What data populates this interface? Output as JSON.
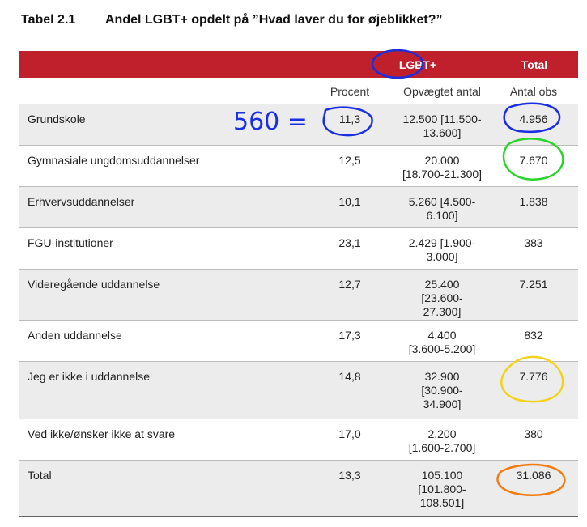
{
  "title": {
    "number": "Tabel 2.1",
    "text": "Andel LGBT+ opdelt på ”Hvad laver du for øjeblikket?”"
  },
  "header": {
    "lgbt": "LGBT+",
    "total": "Total"
  },
  "subheader": {
    "pct": "Procent",
    "weighted": "Opvægtet antal",
    "obs": "Antal obs"
  },
  "rows": [
    {
      "label": "Grundskole",
      "pct": "11,3",
      "weighted": [
        "12.500 [11.500-",
        "13.600]"
      ],
      "obs": "4.956"
    },
    {
      "label": "Gymnasiale ungdomsuddannelser",
      "pct": "12,5",
      "weighted": [
        "20.000",
        "[18.700-21.300]"
      ],
      "obs": "7.670"
    },
    {
      "label": "Erhvervsuddannelser",
      "pct": "10,1",
      "weighted": [
        "5.260 [4.500-",
        "6.100]"
      ],
      "obs": "1.838"
    },
    {
      "label": "FGU-institutioner",
      "pct": "23,1",
      "weighted": [
        "2.429 [1.900-",
        "3.000]"
      ],
      "obs": "383"
    },
    {
      "label": "Videregående uddannelse",
      "pct": "12,7",
      "weighted": [
        "25.400",
        "[23.600-",
        "27.300]"
      ],
      "obs": "7.251"
    },
    {
      "label": "Anden uddannelse",
      "pct": "17,3",
      "weighted": [
        "4.400",
        "[3.600-5.200]"
      ],
      "obs": "832"
    },
    {
      "label": "Jeg er ikke i uddannelse",
      "pct": "14,8",
      "weighted": [
        "32.900",
        "[30.900-",
        "34.900]"
      ],
      "obs": "7.776"
    },
    {
      "label": "Ved ikke/ønsker ikke at svare",
      "pct": "17,0",
      "weighted": [
        "2.200",
        "[1.600-2.700]"
      ],
      "obs": "380"
    },
    {
      "label": "Total",
      "pct": "13,3",
      "weighted": [
        "105.100",
        "[101.800-",
        "108.501]"
      ],
      "obs": "31.086"
    }
  ],
  "annotation": {
    "text": "560 ="
  },
  "colors": {
    "header_red": "#c01f2c",
    "blue": "#1a2fe0",
    "green": "#2bd42b",
    "yellow": "#f2d21a",
    "orange": "#f07d12"
  }
}
